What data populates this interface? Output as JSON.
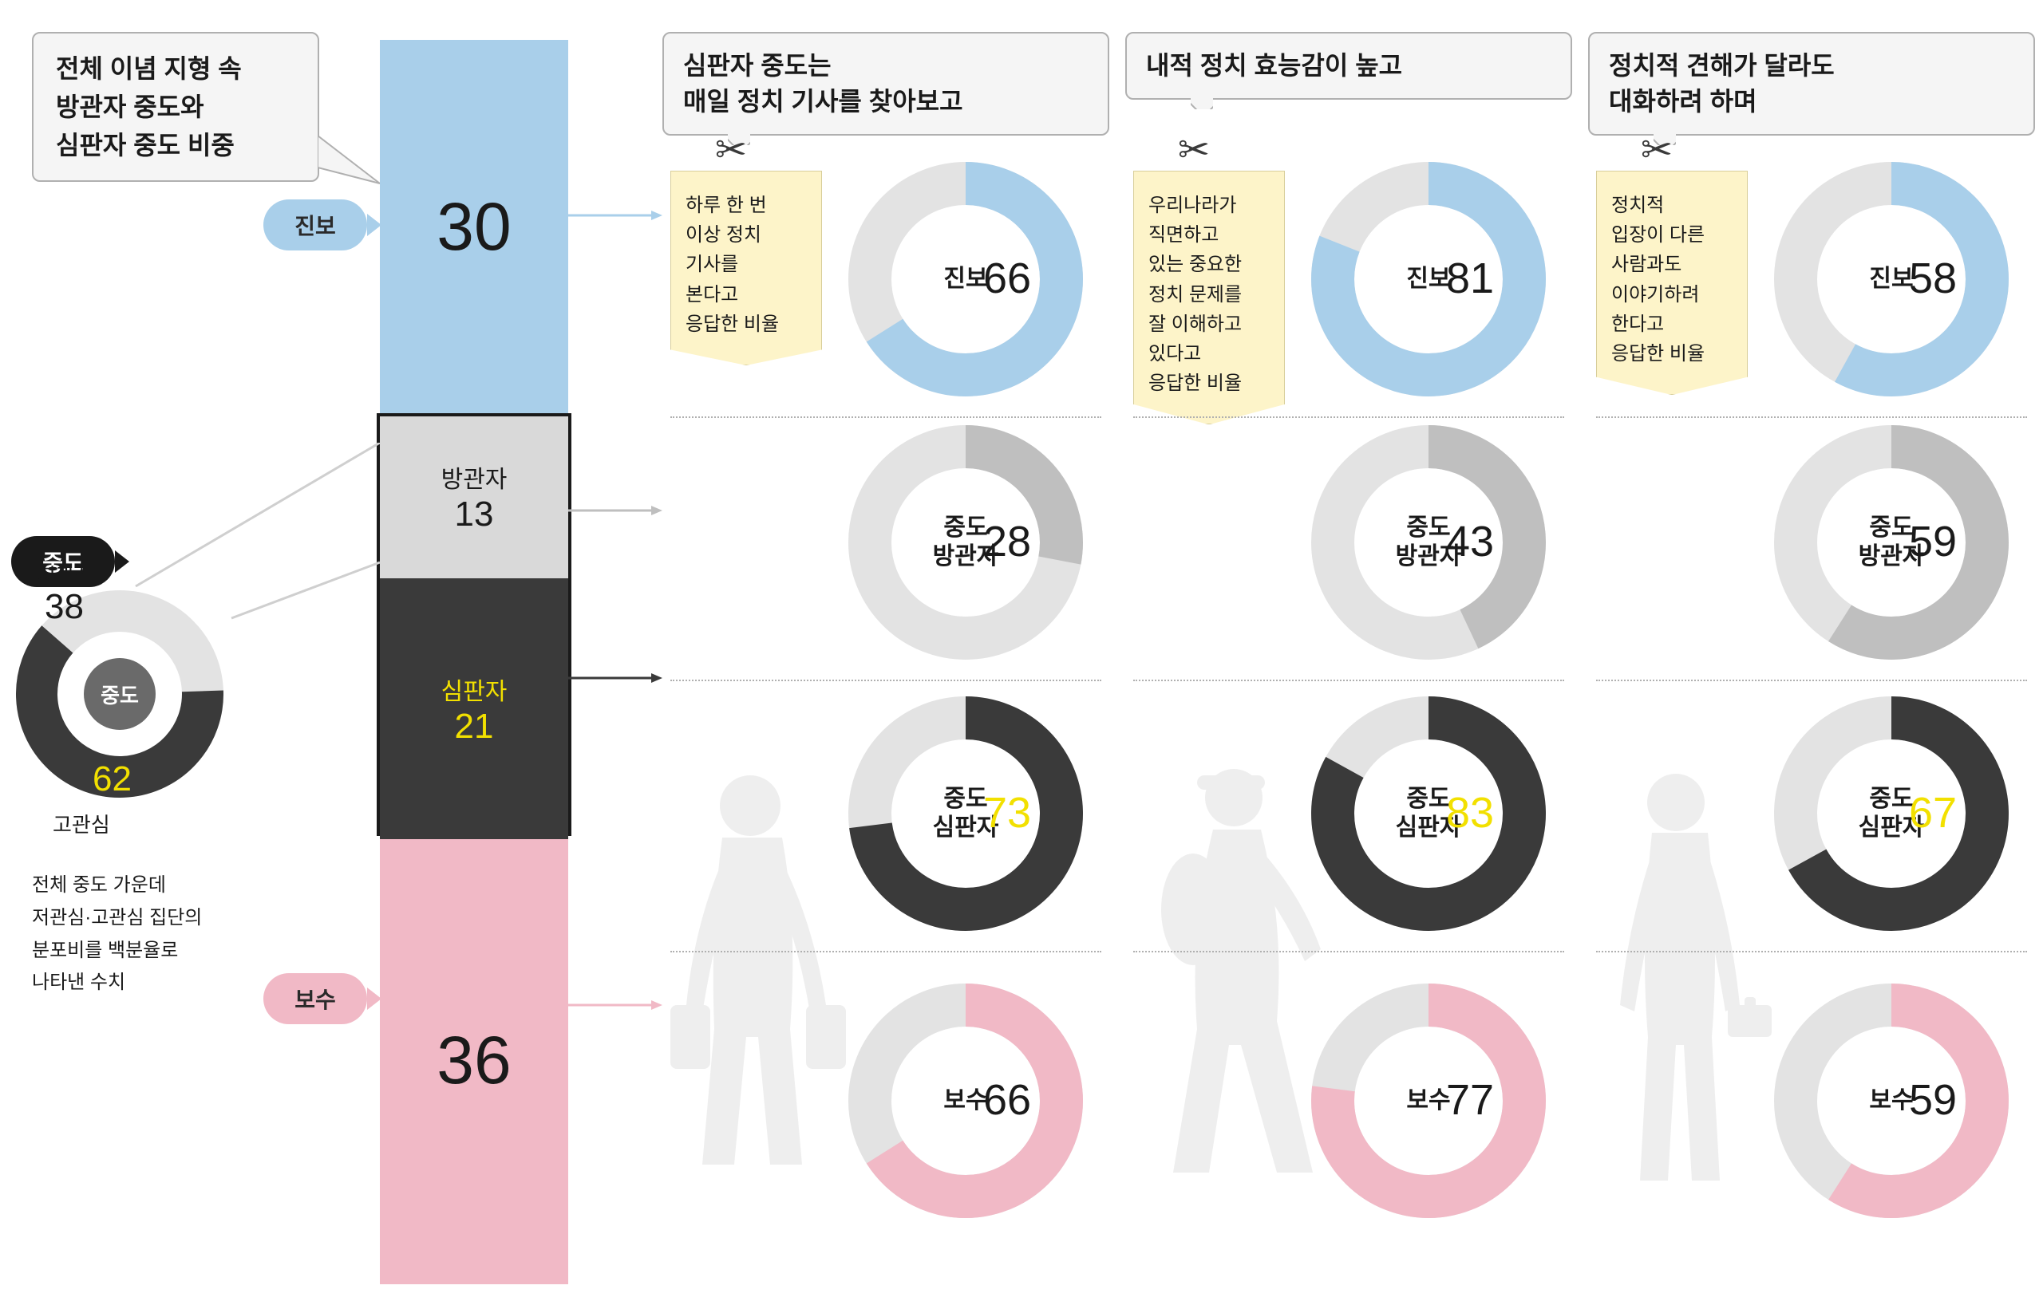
{
  "colors": {
    "blue": "#a9cfea",
    "pink": "#f1b9c6",
    "lightgray": "#d9d9d9",
    "midgray": "#bfbfbf",
    "darkgray": "#3a3a3a",
    "offgray": "#e3e3e3",
    "yellow": "#f2e000",
    "black": "#1a1a1a",
    "silhouette": "#d0d0d0"
  },
  "main_box": {
    "lines": [
      "전체 이념 지형 속",
      "방관자 중도와",
      "심판자 중도 비중"
    ]
  },
  "labels": {
    "progressive": "진보",
    "moderate": "중도",
    "conservative": "보수",
    "bystander": "방관자",
    "judge": "심판자",
    "low_interest": "저관심",
    "high_interest": "고관심",
    "mod_bystander": "중도\n방관자",
    "mod_judge": "중도\n심판자"
  },
  "stacked": {
    "progressive": 30,
    "bystander": 13,
    "judge": 21,
    "conservative": 36
  },
  "interest_donut": {
    "low": 38,
    "high": 62,
    "center": "중도",
    "caption": [
      "전체 중도 가운데",
      "저관심·고관심 집단의",
      "분포비를 백분율로",
      "나타낸 수치"
    ]
  },
  "columns": [
    {
      "header": "심판자 중도는\n매일 정치 기사를 찾아보고",
      "tag": [
        "하루 한 번",
        "이상 정치",
        "기사를",
        "본다고",
        "응답한 비율"
      ],
      "donuts": {
        "progressive": 66,
        "bystander": 28,
        "judge": 73,
        "conservative": 66
      }
    },
    {
      "header": "내적 정치 효능감이 높고",
      "tag": [
        "우리나라가",
        "직면하고",
        "있는 중요한",
        "정치 문제를",
        "잘 이해하고",
        "있다고",
        "응답한 비율"
      ],
      "donuts": {
        "progressive": 81,
        "bystander": 43,
        "judge": 83,
        "conservative": 77
      }
    },
    {
      "header": "정치적 견해가 달라도\n대화하려 하며",
      "tag": [
        "정치적",
        "입장이 다른",
        "사람과도",
        "이야기하려",
        "한다고",
        "응답한 비율"
      ],
      "donuts": {
        "progressive": 58,
        "bystander": 59,
        "judge": 67,
        "conservative": 59
      }
    }
  ]
}
